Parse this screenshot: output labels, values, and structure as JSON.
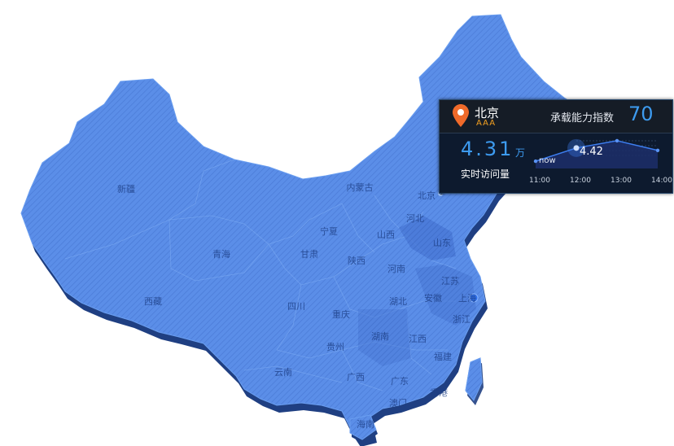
{
  "map": {
    "region": "China",
    "fill_color": "#4f85e3",
    "shadow_color": "#1e3d7a",
    "provinces": [
      {
        "id": "xinjiang",
        "name": "新疆"
      },
      {
        "id": "xizang",
        "name": "西藏"
      },
      {
        "id": "qinghai",
        "name": "青海"
      },
      {
        "id": "gansu",
        "name": "甘肃"
      },
      {
        "id": "neimenggu",
        "name": "内蒙古"
      },
      {
        "id": "ningxia",
        "name": "宁夏"
      },
      {
        "id": "shaanxi",
        "name": "陕西"
      },
      {
        "id": "shanxi",
        "name": "山西"
      },
      {
        "id": "hebei",
        "name": "河北"
      },
      {
        "id": "beijing",
        "name": "北京"
      },
      {
        "id": "shandong",
        "name": "山东"
      },
      {
        "id": "henan",
        "name": "河南"
      },
      {
        "id": "jiangsu",
        "name": "江苏"
      },
      {
        "id": "shanghai",
        "name": "上海"
      },
      {
        "id": "anhui",
        "name": "安徽"
      },
      {
        "id": "hubei",
        "name": "湖北"
      },
      {
        "id": "sichuan",
        "name": "四川"
      },
      {
        "id": "chongqing",
        "name": "重庆"
      },
      {
        "id": "zhejiang",
        "name": "浙江"
      },
      {
        "id": "hunan",
        "name": "湖南"
      },
      {
        "id": "jiangxi",
        "name": "江西"
      },
      {
        "id": "guizhou",
        "name": "贵州"
      },
      {
        "id": "fujian",
        "name": "福建"
      },
      {
        "id": "yunnan",
        "name": "云南"
      },
      {
        "id": "guangxi",
        "name": "广西"
      },
      {
        "id": "guangdong",
        "name": "广东"
      },
      {
        "id": "xianggang",
        "name": "香港"
      },
      {
        "id": "aomen",
        "name": "澳门"
      },
      {
        "id": "hainan",
        "name": "海南"
      }
    ]
  },
  "tooltip": {
    "city": "北京",
    "grade": "AAA",
    "capacity_label": "承载能力指数",
    "capacity_value": "70",
    "visits_value": "4.31",
    "visits_unit": "万",
    "visits_label": "实时访问量",
    "now_label": "now",
    "peak_value": "4.42",
    "accent_color": "#3d9bf0",
    "pin_color": "#f06a2a"
  },
  "chart_data": {
    "type": "line",
    "title": "",
    "x": [
      "11:00",
      "12:00",
      "13:00",
      "14:00"
    ],
    "series": [
      {
        "values": [
          4.31,
          4.42,
          4.48,
          4.4
        ]
      }
    ],
    "annotations": [
      {
        "x": "11:00",
        "label": "now"
      },
      {
        "x": "12:00",
        "label": "4.42"
      }
    ]
  }
}
